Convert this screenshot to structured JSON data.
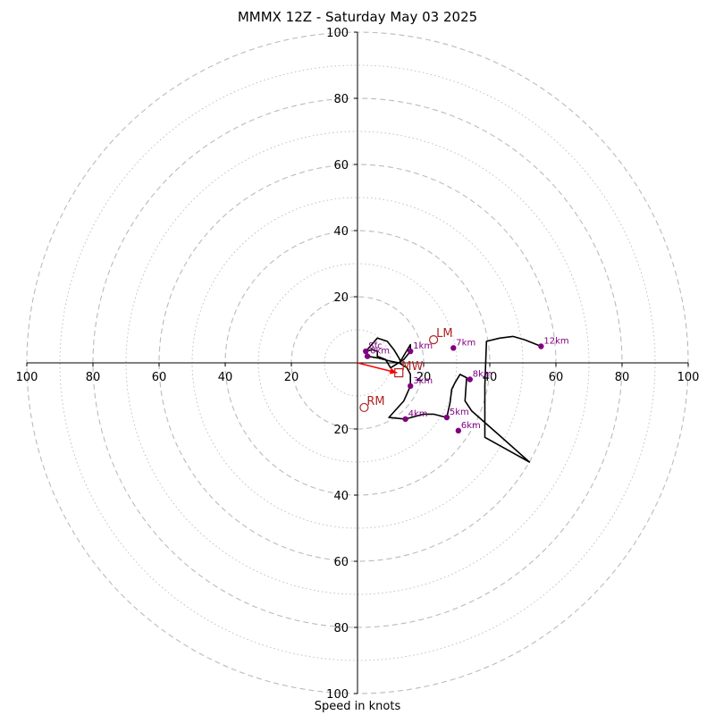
{
  "chart_data": {
    "type": "hodograph",
    "title": "MMMX 12Z - Saturday May 03 2025",
    "xlabel": "Speed in knots",
    "axis_range": [
      -100,
      100
    ],
    "grid": "on",
    "ring_ticks": [
      20,
      40,
      60,
      80,
      100
    ],
    "x_tick_labels": [
      "100",
      "80",
      "60",
      "40",
      "20",
      "20",
      "40",
      "60",
      "80",
      "100"
    ],
    "y_tick_labels": [
      "100",
      "80",
      "60",
      "40",
      "20",
      "20",
      "40",
      "60",
      "80",
      "100"
    ],
    "trace": [
      [
        2.5,
        3.5
      ],
      [
        6,
        7.5
      ],
      [
        9,
        6.5
      ],
      [
        11,
        4
      ],
      [
        12.5,
        1.5
      ],
      [
        13,
        0.5
      ],
      [
        16,
        5.5
      ],
      [
        16,
        3.5
      ],
      [
        14,
        1
      ],
      [
        10,
        -1.5
      ],
      [
        8.5,
        1
      ],
      [
        6,
        2
      ],
      [
        6,
        3.5
      ],
      [
        4.5,
        4
      ],
      [
        2.5,
        3.5
      ],
      [
        3,
        2
      ],
      [
        6,
        1.5
      ],
      [
        10,
        0.5
      ],
      [
        12.5,
        0
      ],
      [
        15,
        -1.5
      ],
      [
        16,
        -3.5
      ],
      [
        16,
        -7
      ],
      [
        14,
        -11.5
      ],
      [
        9.5,
        -16.5
      ],
      [
        14.5,
        -17
      ],
      [
        20,
        -15.5
      ],
      [
        23,
        -15.5
      ],
      [
        27,
        -16.5
      ],
      [
        28,
        -12
      ],
      [
        28.5,
        -8
      ],
      [
        29.5,
        -6
      ],
      [
        31,
        -3.5
      ],
      [
        33,
        -4.5
      ],
      [
        32.5,
        -11.5
      ],
      [
        34.5,
        -14.5
      ],
      [
        39,
        -18.5
      ],
      [
        43,
        -22
      ],
      [
        52,
        -30
      ],
      [
        38.5,
        -22.5
      ],
      [
        38.5,
        -7
      ],
      [
        39,
        6.5
      ],
      [
        43,
        7.5
      ],
      [
        47,
        8
      ],
      [
        50.5,
        7
      ],
      [
        55.5,
        5
      ]
    ],
    "height_markers": [
      {
        "label": "Sfc",
        "u": 2.5,
        "v": 3.5
      },
      {
        "label": "0km",
        "u": 3,
        "v": 2
      },
      {
        "label": "1km",
        "u": 16,
        "v": 3.5
      },
      {
        "label": "3km",
        "u": 16,
        "v": -7
      },
      {
        "label": "4km",
        "u": 14.5,
        "v": -17
      },
      {
        "label": "5km",
        "u": 27,
        "v": -16.5
      },
      {
        "label": "6km",
        "u": 30.5,
        "v": -20.5
      },
      {
        "label": "7km",
        "u": 29,
        "v": 4.5
      },
      {
        "label": "8km",
        "u": 34,
        "v": -5
      },
      {
        "label": "12km",
        "u": 55.5,
        "v": 5
      }
    ],
    "storm_motion": [
      {
        "label": "LM",
        "u": 23,
        "v": 7,
        "marker": "circle"
      },
      {
        "label": "MW",
        "u": 12.5,
        "v": -3,
        "marker": "square"
      },
      {
        "label": "RM",
        "u": 2,
        "v": -13.5,
        "marker": "circle"
      }
    ],
    "shear_vector": {
      "u0": 0,
      "v0": 0,
      "u1": 12,
      "v1": -3
    }
  },
  "colors": {
    "trace": "#000000",
    "height_marker": "#800080",
    "storm_motion": "#b22222",
    "shear_vector": "#ff0000",
    "grid": "#bbbbbb"
  }
}
